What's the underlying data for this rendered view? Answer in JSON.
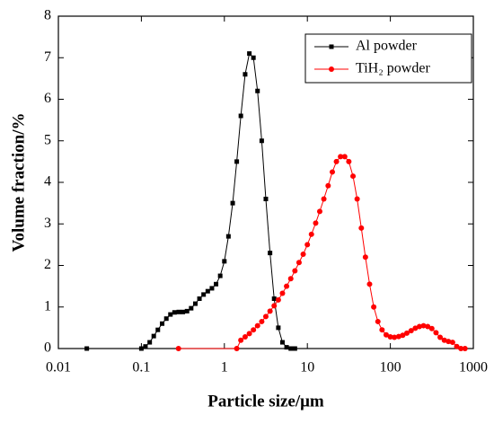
{
  "chart_data": {
    "type": "line",
    "xscale": "log",
    "xlabel": "Particle size/μm",
    "ylabel": "Volume fraction/%",
    "xlim": [
      0.01,
      1000
    ],
    "xticks": [
      0.01,
      0.1,
      1,
      10,
      100,
      1000
    ],
    "ylim": [
      0,
      8
    ],
    "yticks": [
      0,
      1,
      2,
      3,
      4,
      5,
      6,
      7,
      8
    ],
    "legend": "upper right",
    "series": [
      {
        "name": "Al powder",
        "color": "#000000",
        "marker": "square",
        "x": [
          0.022,
          0.1,
          0.112,
          0.126,
          0.141,
          0.158,
          0.178,
          0.2,
          0.224,
          0.251,
          0.282,
          0.316,
          0.355,
          0.398,
          0.447,
          0.501,
          0.562,
          0.631,
          0.708,
          0.794,
          0.891,
          1.0,
          1.12,
          1.26,
          1.41,
          1.58,
          1.78,
          2.0,
          2.24,
          2.51,
          2.82,
          3.16,
          3.55,
          3.98,
          4.47,
          5.01,
          5.62,
          6.31,
          7.08
        ],
        "values": [
          0,
          0,
          0.05,
          0.15,
          0.3,
          0.45,
          0.6,
          0.72,
          0.82,
          0.87,
          0.88,
          0.88,
          0.9,
          0.97,
          1.08,
          1.2,
          1.3,
          1.38,
          1.45,
          1.55,
          1.75,
          2.1,
          2.7,
          3.5,
          4.5,
          5.6,
          6.6,
          7.1,
          7.0,
          6.2,
          5.0,
          3.6,
          2.3,
          1.2,
          0.5,
          0.15,
          0.03,
          0,
          0
        ]
      },
      {
        "name": "TiH₂ powder",
        "color": "#ff0000",
        "marker": "circle",
        "x": [
          0.28,
          1.41,
          1.58,
          1.78,
          2.0,
          2.24,
          2.51,
          2.82,
          3.16,
          3.55,
          3.98,
          4.47,
          5.01,
          5.62,
          6.31,
          7.08,
          7.94,
          8.91,
          10,
          11.2,
          12.6,
          14.1,
          15.8,
          17.8,
          20,
          22.4,
          25.1,
          28.2,
          31.6,
          35.5,
          39.8,
          44.7,
          50.1,
          56.2,
          63.1,
          70.8,
          79.4,
          89.1,
          100,
          112,
          126,
          141,
          158,
          178,
          200,
          224,
          251,
          282,
          316,
          355,
          398,
          447,
          501,
          562,
          631,
          708,
          794
        ],
        "values": [
          0,
          0,
          0.2,
          0.28,
          0.36,
          0.45,
          0.55,
          0.65,
          0.77,
          0.9,
          1.03,
          1.17,
          1.33,
          1.5,
          1.68,
          1.87,
          2.07,
          2.27,
          2.5,
          2.75,
          3.02,
          3.3,
          3.6,
          3.92,
          4.25,
          4.5,
          4.62,
          4.62,
          4.5,
          4.15,
          3.6,
          2.9,
          2.2,
          1.55,
          1.0,
          0.65,
          0.45,
          0.33,
          0.28,
          0.27,
          0.29,
          0.32,
          0.37,
          0.43,
          0.49,
          0.53,
          0.55,
          0.53,
          0.48,
          0.38,
          0.27,
          0.2,
          0.17,
          0.15,
          0.05,
          0,
          0
        ]
      }
    ]
  }
}
